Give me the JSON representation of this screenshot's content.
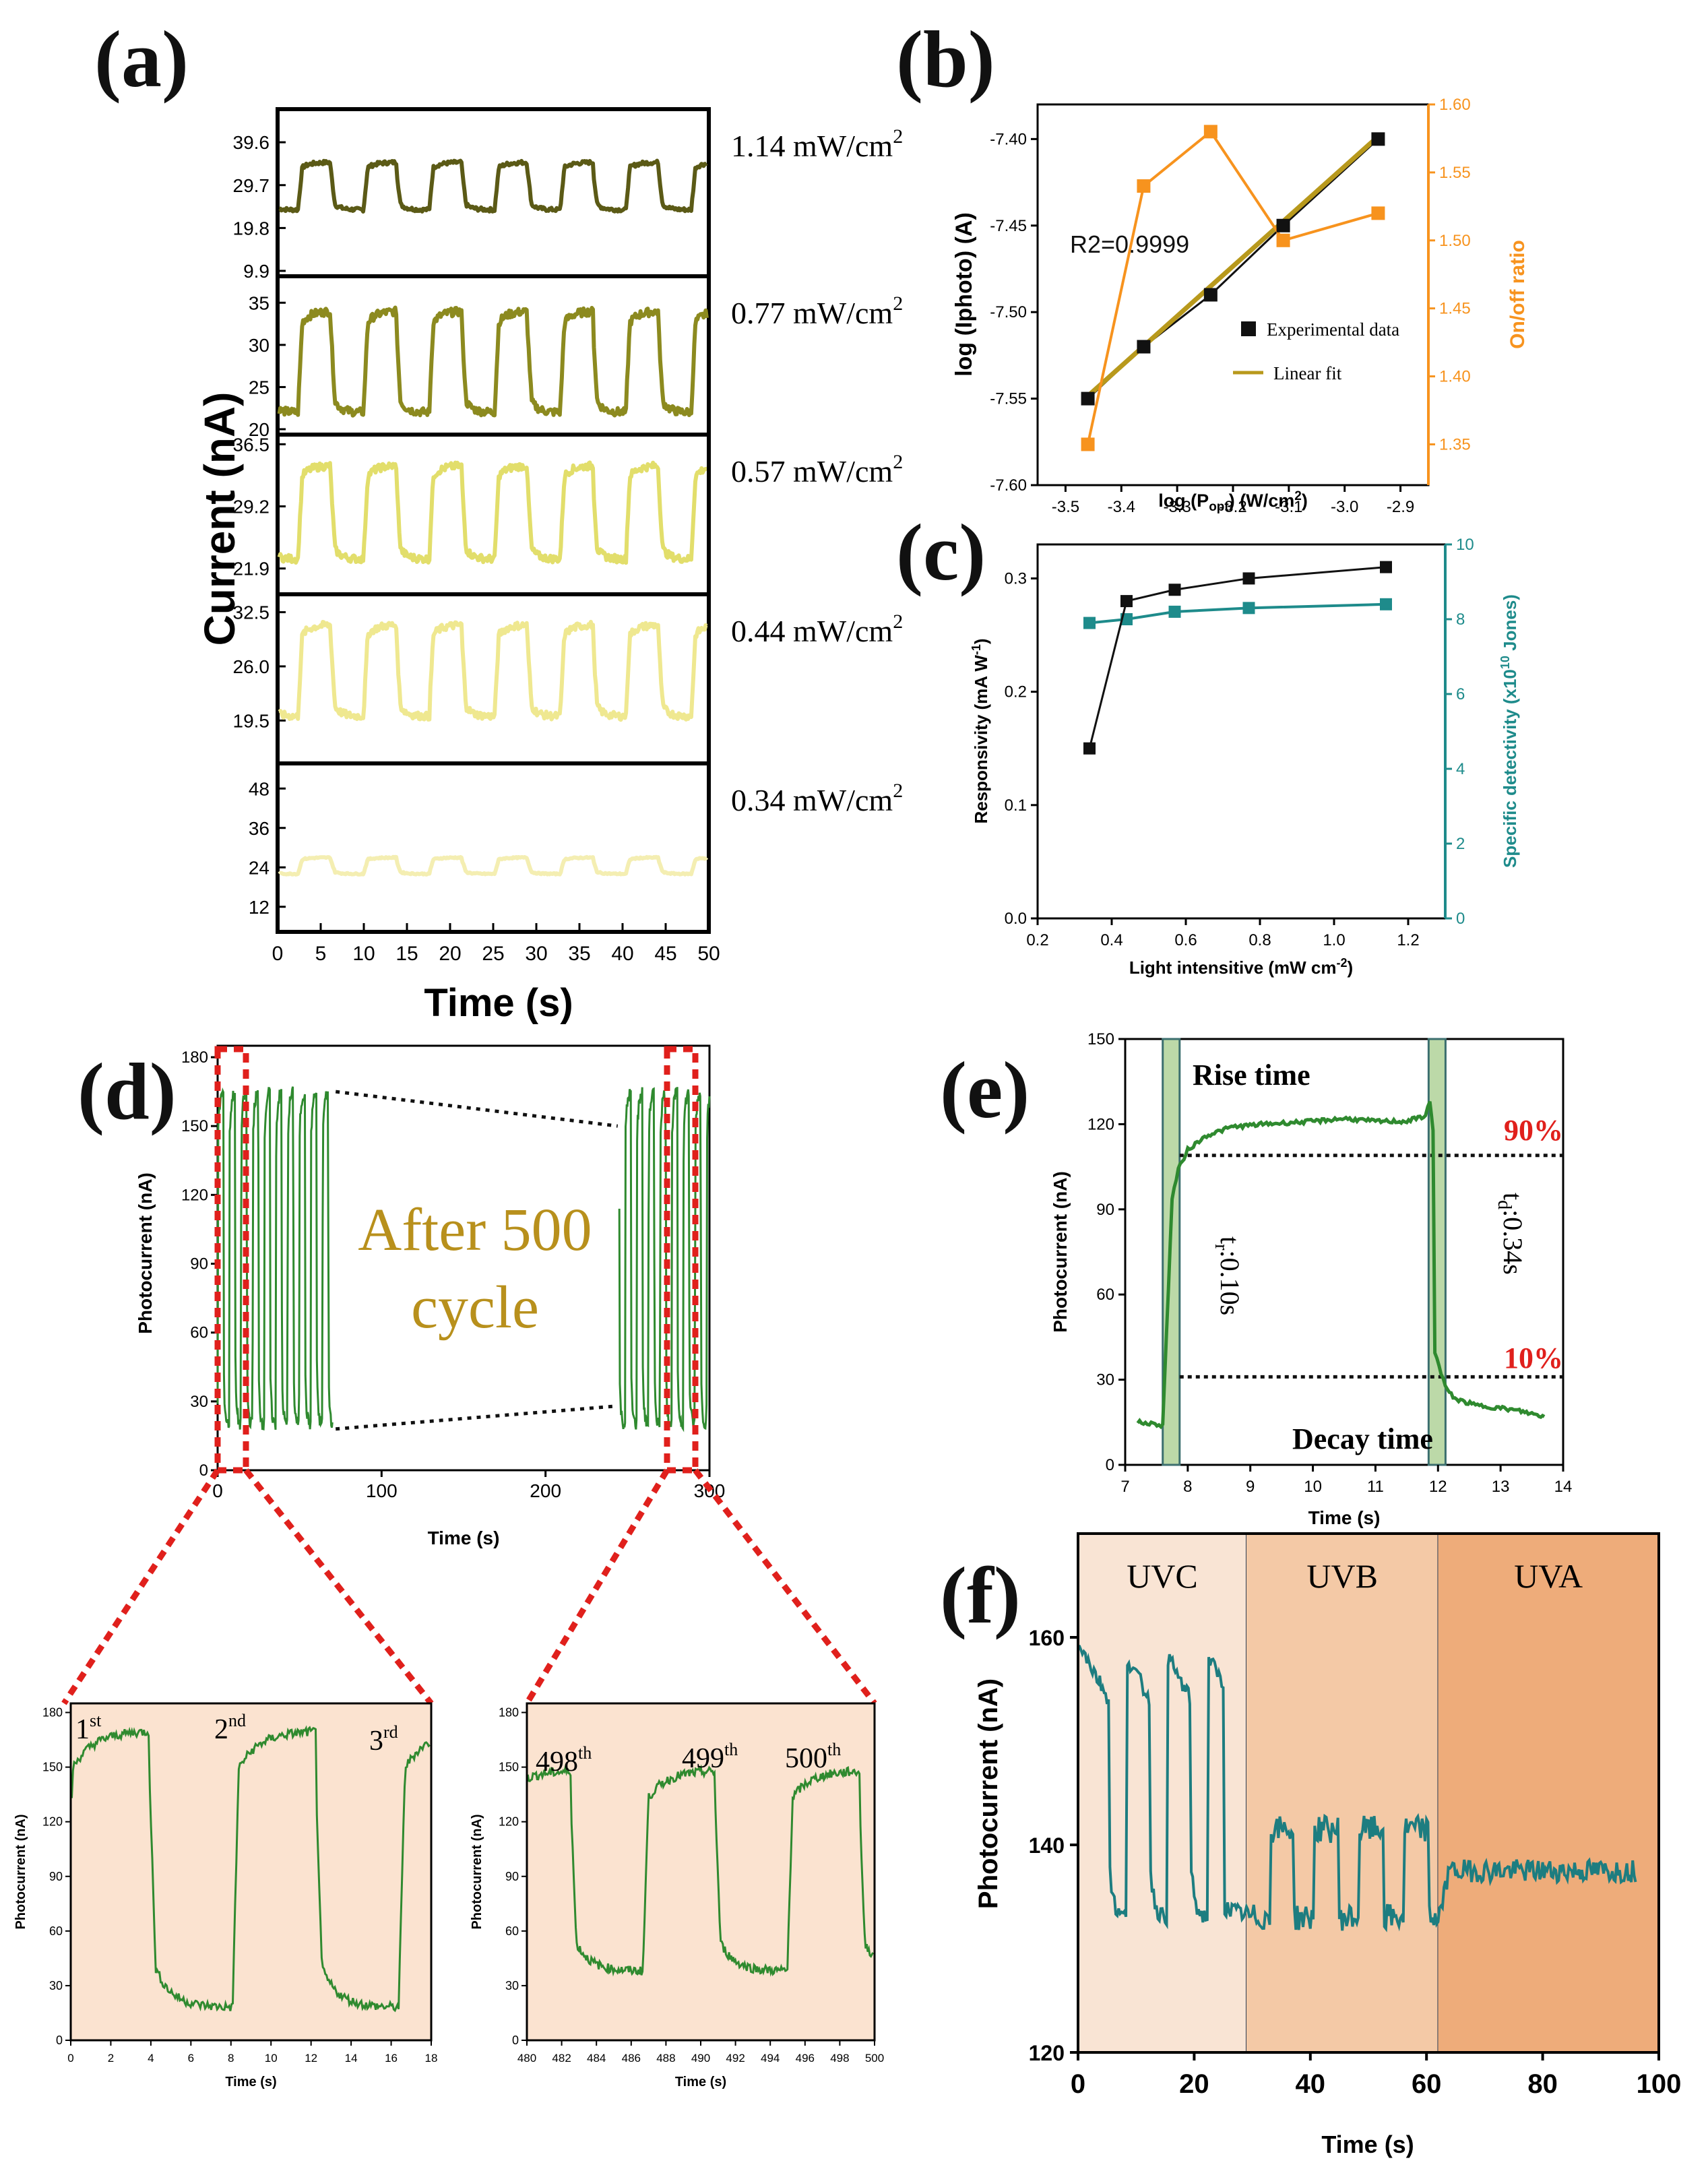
{
  "chart_data": [
    {
      "id": "a",
      "type": "line",
      "panel_label": "(a)",
      "xlabel": "Time (s)",
      "ylabel": "Current (nA)",
      "xlim": [
        0,
        50
      ],
      "xticks": [
        "0",
        "5",
        "10",
        "15",
        "20",
        "25",
        "30",
        "35",
        "40",
        "45",
        "50"
      ],
      "series": [
        {
          "name": "1.14 mW/cm²",
          "intensity": "1.14 mW/cm",
          "color": "#5b5a16",
          "low": 24,
          "high": 35,
          "ylim": [
            9.9,
            46
          ],
          "yticks": [
            "39.6",
            "29.7",
            "19.8",
            "9.9"
          ],
          "ytick_values": [
            39.6,
            29.7,
            19.8,
            9.9
          ]
        },
        {
          "name": "0.77 mW/cm²",
          "intensity": "0.77 mW/cm",
          "color": "#8c8a1f",
          "low": 22,
          "high": 34,
          "ylim": [
            20,
            37.5
          ],
          "yticks": [
            "35",
            "30",
            "25",
            "20"
          ],
          "ytick_values": [
            35,
            30,
            25,
            20
          ]
        },
        {
          "name": "0.57 mW/cm²",
          "intensity": "0.57 mW/cm",
          "color": "#e2de6b",
          "low": 23,
          "high": 34,
          "ylim": [
            19.5,
            37
          ],
          "yticks": [
            "36.5",
            "29.2",
            "21.9"
          ],
          "ytick_values": [
            36.5,
            29.2,
            21.9
          ]
        },
        {
          "name": "0.44 mW/cm²",
          "intensity": "0.44 mW/cm",
          "color": "#efe890",
          "low": 20,
          "high": 31,
          "ylim": [
            15,
            34
          ],
          "yticks": [
            "32.5",
            "26.0",
            "19.5"
          ],
          "ytick_values": [
            32.5,
            26.0,
            19.5
          ]
        },
        {
          "name": "0.34 mW/cm²",
          "intensity": "0.34 mW/cm",
          "color": "#f4eeb2",
          "low": 22,
          "high": 27,
          "ylim": [
            6,
            54
          ],
          "yticks": [
            "48",
            "36",
            "24",
            "12"
          ],
          "ytick_values": [
            48,
            36,
            24,
            12
          ]
        }
      ]
    },
    {
      "id": "b",
      "type": "scatter",
      "panel_label": "(b)",
      "xlabel": "log (Popt) (W/cm2)",
      "ylabel": "log (Iphoto) (A)",
      "ylabel2": "On/off ratio",
      "xlim": [
        -3.55,
        -2.85
      ],
      "ylim": [
        -7.6,
        -7.38
      ],
      "y2lim": [
        1.32,
        1.6
      ],
      "xticks": [
        "-3.5",
        "-3.4",
        "-3.3",
        "-3.2",
        "-3.1",
        "-3.0",
        "-2.9"
      ],
      "yticks": [
        "-7.40",
        "-7.45",
        "-7.50",
        "-7.55",
        "-7.60"
      ],
      "y2ticks": [
        "1.60",
        "1.55",
        "1.50",
        "1.45",
        "1.40",
        "1.35"
      ],
      "annotation": "R2=0.9999",
      "legend": [
        "Experimental data",
        "Linear fit"
      ],
      "series": [
        {
          "name": "Experimental data",
          "x": [
            -3.46,
            -3.36,
            -3.24,
            -3.11,
            -2.94
          ],
          "y": [
            -7.55,
            -7.52,
            -7.49,
            -7.45,
            -7.4
          ],
          "color": "#111111"
        },
        {
          "name": "Linear fit",
          "x": [
            -3.46,
            -2.94
          ],
          "y": [
            -7.5485,
            -7.3985
          ],
          "color": "#b8991c"
        },
        {
          "name": "On/off ratio",
          "x": [
            -3.46,
            -3.36,
            -3.24,
            -3.11,
            -2.94
          ],
          "y": [
            1.35,
            1.54,
            1.58,
            1.5,
            1.52
          ],
          "color": "#f7931e",
          "axis": "right"
        }
      ]
    },
    {
      "id": "c",
      "type": "line",
      "panel_label": "(c)",
      "xlabel": "Light intensitive (mW cm-2)",
      "ylabel": "Responsivity (mA W-1)",
      "ylabel2": "Specific detectivity (x1010 Jones)",
      "xlim": [
        0.2,
        1.3
      ],
      "ylim": [
        0.0,
        0.33
      ],
      "y2lim": [
        0,
        10
      ],
      "xticks": [
        "0.2",
        "0.4",
        "0.6",
        "0.8",
        "1.0",
        "1.2"
      ],
      "yticks": [
        "0.0",
        "0.1",
        "0.2",
        "0.3"
      ],
      "y2ticks": [
        "0",
        "2",
        "4",
        "6",
        "8",
        "10"
      ],
      "series": [
        {
          "name": "Responsivity",
          "x": [
            0.34,
            0.44,
            0.57,
            0.77,
            1.14
          ],
          "y": [
            0.15,
            0.28,
            0.29,
            0.3,
            0.31
          ],
          "color": "#111111"
        },
        {
          "name": "Specific detectivity",
          "x": [
            0.34,
            0.44,
            0.57,
            0.77,
            1.14
          ],
          "y": [
            7.9,
            8.0,
            8.2,
            8.3,
            8.4
          ],
          "color": "#1e8b8b",
          "axis": "right"
        }
      ]
    },
    {
      "id": "d",
      "type": "line",
      "panel_label": "(d)",
      "xlabel": "Time (s)",
      "ylabel": "Photocurrent (nA)",
      "xlim": [
        0,
        300
      ],
      "ylim": [
        0,
        185
      ],
      "xticks": [
        "0",
        "100",
        "200",
        "300"
      ],
      "yticks": [
        "0",
        "30",
        "60",
        "90",
        "120",
        "150",
        "180"
      ],
      "annotation": [
        "After 500",
        "cycle"
      ],
      "series": [
        {
          "name": "Photocurrent",
          "color": "#2f8a2f",
          "low": 20,
          "high": 165,
          "period": 7.1,
          "segments": [
            [
              0,
              70
            ],
            [
              245,
              300
            ]
          ]
        }
      ],
      "insets": [
        {
          "id": "d1",
          "xlim": [
            0,
            18
          ],
          "xticks": [
            "0",
            "2",
            "4",
            "6",
            "8",
            "10",
            "12",
            "14",
            "16",
            "18"
          ],
          "ylim": [
            0,
            185
          ],
          "yticks": [
            "0",
            "30",
            "60",
            "90",
            "120",
            "150",
            "180"
          ],
          "xlabel": "Time (s)",
          "ylabel": "Photocurrent (nA)",
          "labels": [
            "1",
            "2",
            "3"
          ],
          "sups": [
            "st",
            "nd",
            "rd"
          ]
        },
        {
          "id": "d2",
          "xlim": [
            480,
            500
          ],
          "xticks": [
            "480",
            "482",
            "484",
            "486",
            "488",
            "490",
            "492",
            "494",
            "496",
            "498",
            "500"
          ],
          "ylim": [
            0,
            185
          ],
          "yticks": [
            "0",
            "30",
            "60",
            "90",
            "120",
            "150",
            "180"
          ],
          "xlabel": "Time (s)",
          "ylabel": "Photocurrent (nA)",
          "labels": [
            "498",
            "499",
            "500"
          ],
          "sups": [
            "th",
            "th",
            "th"
          ]
        }
      ]
    },
    {
      "id": "e",
      "type": "line",
      "panel_label": "(e)",
      "xlabel": "Time (s)",
      "ylabel": "Photocurrent (nA)",
      "xlim": [
        7,
        14
      ],
      "ylim": [
        0,
        150
      ],
      "xticks": [
        "7",
        "8",
        "9",
        "10",
        "11",
        "12",
        "13",
        "14"
      ],
      "yticks": [
        "0",
        "30",
        "60",
        "90",
        "120",
        "150"
      ],
      "annotations": {
        "rise": "Rise time",
        "decay": "Decay time",
        "p90": "90%",
        "p10": "10%",
        "tr_main": "t",
        "tr_sub": "r",
        "tr_val": ":0.10s",
        "td_main": "t",
        "td_sub": "d",
        "td_val": ":0.34s"
      },
      "levels": {
        "p90": 109,
        "p10": 31
      },
      "series": [
        {
          "name": "Photocurrent",
          "color": "#2f8a2f",
          "x": [
            7.2,
            7.6,
            7.75,
            7.85,
            8.0,
            8.3,
            8.7,
            9.2,
            10.0,
            10.5,
            11.0,
            11.5,
            11.8,
            11.87,
            11.92,
            11.95,
            12.05,
            12.15,
            12.3,
            12.6,
            13.0,
            13.3,
            13.5,
            13.7
          ],
          "y": [
            15,
            14,
            94,
            104,
            111,
            116,
            119,
            120,
            121,
            122,
            121,
            121,
            123,
            128,
            118,
            40,
            32,
            26,
            23,
            21,
            20,
            19,
            18,
            17
          ]
        }
      ]
    },
    {
      "id": "f",
      "type": "line",
      "panel_label": "(f)",
      "xlabel": "Time (s)",
      "ylabel": "Photocurrent (nA)",
      "xlim": [
        0,
        100
      ],
      "ylim": [
        120,
        170
      ],
      "xticks": [
        "0",
        "20",
        "40",
        "60",
        "80",
        "100"
      ],
      "yticks": [
        "120",
        "140",
        "160"
      ],
      "regions": [
        {
          "name": "UVC",
          "x": [
            0,
            29
          ],
          "color": "#f9e4d4"
        },
        {
          "name": "UVB",
          "x": [
            29,
            62
          ],
          "color": "#f4c9a6"
        },
        {
          "name": "UVA",
          "x": [
            62,
            100
          ],
          "color": "#eeac7a"
        }
      ],
      "series": [
        {
          "name": "Photocurrent",
          "color": "#1d7d80"
        }
      ]
    }
  ]
}
